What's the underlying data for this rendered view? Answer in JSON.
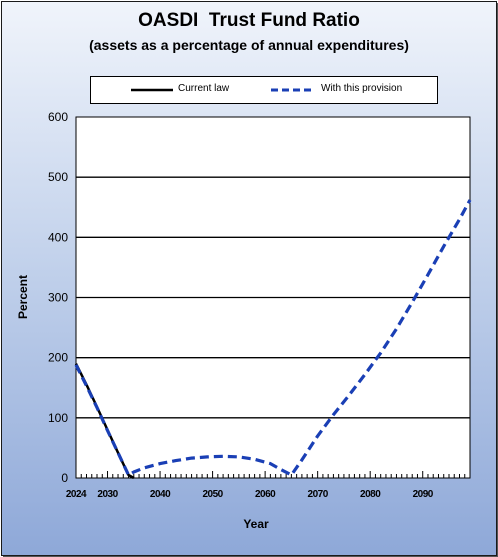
{
  "chart_data": {
    "type": "line",
    "title": "OASDI  Trust Fund Ratio",
    "subtitle": "(assets as a percentage of annual expenditures)",
    "xlabel": "Year",
    "ylabel": "Percent",
    "xlim": [
      2024,
      2099
    ],
    "ylim": [
      0,
      600
    ],
    "yticks": [
      0,
      100,
      200,
      300,
      400,
      500,
      600
    ],
    "xtick_labels": [
      "2024",
      "2030",
      "2040",
      "2050",
      "2060",
      "2070",
      "2080",
      "2090"
    ],
    "xtick_values": [
      2024,
      2030,
      2040,
      2050,
      2060,
      2070,
      2080,
      2090
    ],
    "grid": "horizontal",
    "legend_position": "top",
    "series": [
      {
        "name": "Current law",
        "style": "solid",
        "color": "#000000",
        "points": [
          [
            2024,
            190
          ],
          [
            2026,
            155
          ],
          [
            2028,
            118
          ],
          [
            2030,
            80
          ],
          [
            2032,
            42
          ],
          [
            2034,
            5
          ],
          [
            2035,
            0
          ]
        ]
      },
      {
        "name": "With this provision",
        "style": "dashed",
        "color": "#1a3fb5",
        "points": [
          [
            2024,
            188
          ],
          [
            2026,
            153
          ],
          [
            2028,
            117
          ],
          [
            2030,
            79
          ],
          [
            2032,
            42
          ],
          [
            2034,
            5
          ],
          [
            2035,
            10
          ],
          [
            2037,
            17
          ],
          [
            2040,
            24
          ],
          [
            2043,
            29
          ],
          [
            2046,
            33
          ],
          [
            2049,
            35
          ],
          [
            2052,
            36
          ],
          [
            2055,
            35
          ],
          [
            2058,
            31
          ],
          [
            2061,
            24
          ],
          [
            2063,
            14
          ],
          [
            2065,
            5
          ],
          [
            2067,
            30
          ],
          [
            2070,
            70
          ],
          [
            2073,
            105
          ],
          [
            2076,
            138
          ],
          [
            2079,
            172
          ],
          [
            2082,
            208
          ],
          [
            2085,
            248
          ],
          [
            2088,
            292
          ],
          [
            2091,
            338
          ],
          [
            2094,
            385
          ],
          [
            2097,
            430
          ],
          [
            2099,
            462
          ]
        ]
      }
    ]
  }
}
